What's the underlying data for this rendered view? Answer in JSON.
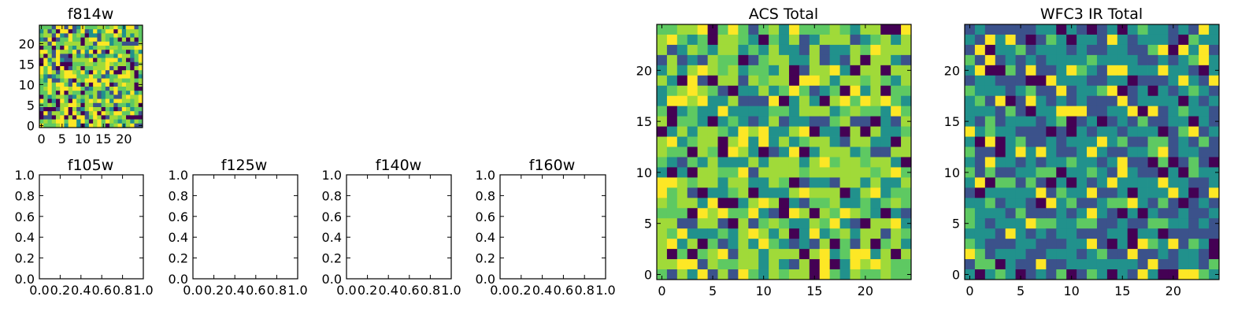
{
  "colormap": [
    "#440154",
    "#3b528b",
    "#21918c",
    "#5ec962",
    "#a0da39",
    "#fde725"
  ],
  "chart_data": [
    {
      "type": "heatmap",
      "title": "f814w",
      "grid": false,
      "xlim": [
        -0.5,
        24.5
      ],
      "ylim": [
        -0.5,
        24.5
      ],
      "xticks": [
        0,
        5,
        10,
        15,
        20
      ],
      "yticks": [
        0,
        5,
        10,
        15,
        20
      ],
      "seed": 11,
      "rows": 25,
      "cols": 25,
      "palette": [
        1,
        2,
        3,
        3,
        4,
        4,
        5,
        5,
        0
      ]
    },
    {
      "type": "heatmap",
      "title": "ACS Total",
      "grid": false,
      "xlim": [
        -0.5,
        24.5
      ],
      "ylim": [
        -0.5,
        24.5
      ],
      "xticks": [
        0,
        5,
        10,
        15,
        20
      ],
      "yticks": [
        0,
        5,
        10,
        15,
        20
      ],
      "seed": 23,
      "rows": 25,
      "cols": 25,
      "palette": [
        2,
        2,
        3,
        3,
        4,
        4,
        4,
        5,
        0,
        1
      ]
    },
    {
      "type": "heatmap",
      "title": "WFC3 IR Total",
      "grid": false,
      "xlim": [
        -0.5,
        24.5
      ],
      "ylim": [
        -0.5,
        24.5
      ],
      "xticks": [
        0,
        5,
        10,
        15,
        20
      ],
      "yticks": [
        0,
        5,
        10,
        15,
        20
      ],
      "seed": 37,
      "rows": 25,
      "cols": 25,
      "palette": [
        1,
        1,
        1,
        2,
        2,
        2,
        2,
        0,
        3,
        5
      ]
    },
    {
      "type": "line",
      "title": "f105w",
      "series": [],
      "grid": false,
      "xlim": [
        0.0,
        1.0
      ],
      "ylim": [
        0.0,
        1.0
      ],
      "xticklabels": [
        "0.0",
        "0.2",
        "0.4",
        "0.6",
        "0.8",
        "1.0"
      ],
      "yticklabels": [
        "0.0",
        "0.2",
        "0.4",
        "0.6",
        "0.8",
        "1.0"
      ]
    },
    {
      "type": "line",
      "title": "f125w",
      "series": [],
      "grid": false,
      "xlim": [
        0.0,
        1.0
      ],
      "ylim": [
        0.0,
        1.0
      ],
      "xticklabels": [
        "0.0",
        "0.2",
        "0.4",
        "0.6",
        "0.8",
        "1.0"
      ],
      "yticklabels": [
        "0.0",
        "0.2",
        "0.4",
        "0.6",
        "0.8",
        "1.0"
      ]
    },
    {
      "type": "line",
      "title": "f140w",
      "series": [],
      "grid": false,
      "xlim": [
        0.0,
        1.0
      ],
      "ylim": [
        0.0,
        1.0
      ],
      "xticklabels": [
        "0.0",
        "0.2",
        "0.4",
        "0.6",
        "0.8",
        "1.0"
      ],
      "yticklabels": [
        "0.0",
        "0.2",
        "0.4",
        "0.6",
        "0.8",
        "1.0"
      ]
    },
    {
      "type": "line",
      "title": "f160w",
      "series": [],
      "grid": false,
      "xlim": [
        0.0,
        1.0
      ],
      "ylim": [
        0.0,
        1.0
      ],
      "xticklabels": [
        "0.0",
        "0.2",
        "0.4",
        "0.6",
        "0.8",
        "1.0"
      ],
      "yticklabels": [
        "0.0",
        "0.2",
        "0.4",
        "0.6",
        "0.8",
        "1.0"
      ]
    }
  ]
}
